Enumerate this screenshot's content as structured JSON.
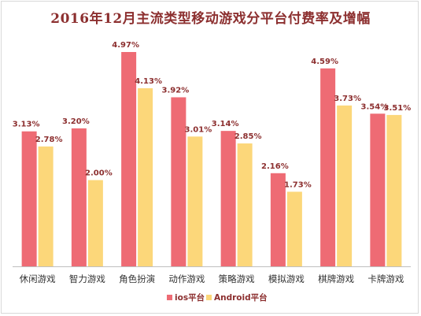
{
  "chart_data": {
    "type": "bar",
    "title": "2016年12月主流类型移动游戏分平台付费率及增幅",
    "categories": [
      "休闲游戏",
      "智力游戏",
      "角色扮演",
      "动作游戏",
      "策略游戏",
      "模拟游戏",
      "棋牌游戏",
      "卡牌游戏"
    ],
    "series": [
      {
        "name": "ios平台",
        "color": "#ee6b74",
        "values": [
          3.13,
          3.2,
          4.97,
          3.92,
          3.14,
          2.16,
          4.59,
          3.54
        ],
        "labels": [
          "3.13%",
          "3.20%",
          "4.97%",
          "3.92%",
          "3.14%",
          "2.16%",
          "4.59%",
          "3.54%"
        ]
      },
      {
        "name": "Android平台",
        "color": "#fcd77a",
        "values": [
          2.78,
          2.0,
          4.13,
          3.01,
          2.85,
          1.73,
          3.73,
          3.51
        ],
        "labels": [
          "2.78%",
          "2.00%",
          "4.13%",
          "3.01%",
          "2.85%",
          "1.73%",
          "3.73%",
          "3.51%"
        ]
      }
    ],
    "ylim": [
      0,
      5.2
    ],
    "grid": false,
    "legend_position": "bottom",
    "unit": "%"
  }
}
